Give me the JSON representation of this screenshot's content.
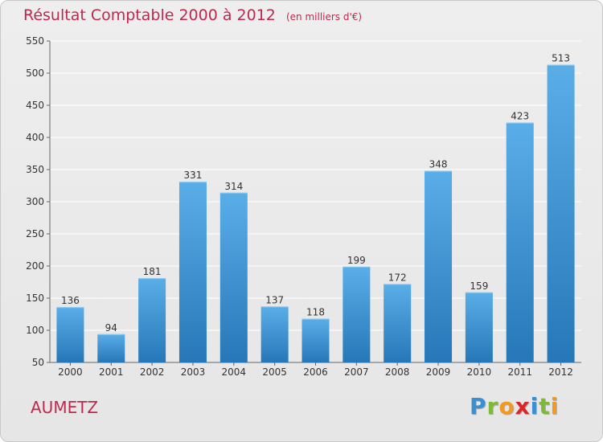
{
  "chart_data": {
    "type": "bar",
    "title": "Résultat Comptable 2000 à 2012",
    "subtitle": "(en milliers d'€)",
    "categories": [
      "2000",
      "2001",
      "2002",
      "2003",
      "2004",
      "2005",
      "2006",
      "2007",
      "2008",
      "2009",
      "2010",
      "2011",
      "2012"
    ],
    "values": [
      136,
      94,
      181,
      331,
      314,
      137,
      118,
      199,
      172,
      348,
      159,
      423,
      513
    ],
    "ylim": [
      50,
      550
    ],
    "yticks": [
      50,
      100,
      150,
      200,
      250,
      300,
      350,
      400,
      450,
      500,
      550
    ],
    "xlabel": "",
    "ylabel": "",
    "grid": true
  },
  "commune": "AUMETZ",
  "logo": {
    "letters": [
      "P",
      "r",
      "o",
      "x",
      "i",
      "t",
      "i"
    ],
    "colors": [
      "#3b8fd1",
      "#7fb93a",
      "#f29a1f",
      "#d9262b",
      "#3b8fd1",
      "#7fb93a",
      "#f29a1f"
    ]
  },
  "colors": {
    "title": "#c0284f",
    "bar_top": "#5aaee8",
    "bar_bottom": "#2677b7",
    "grid": "#ffffff"
  }
}
